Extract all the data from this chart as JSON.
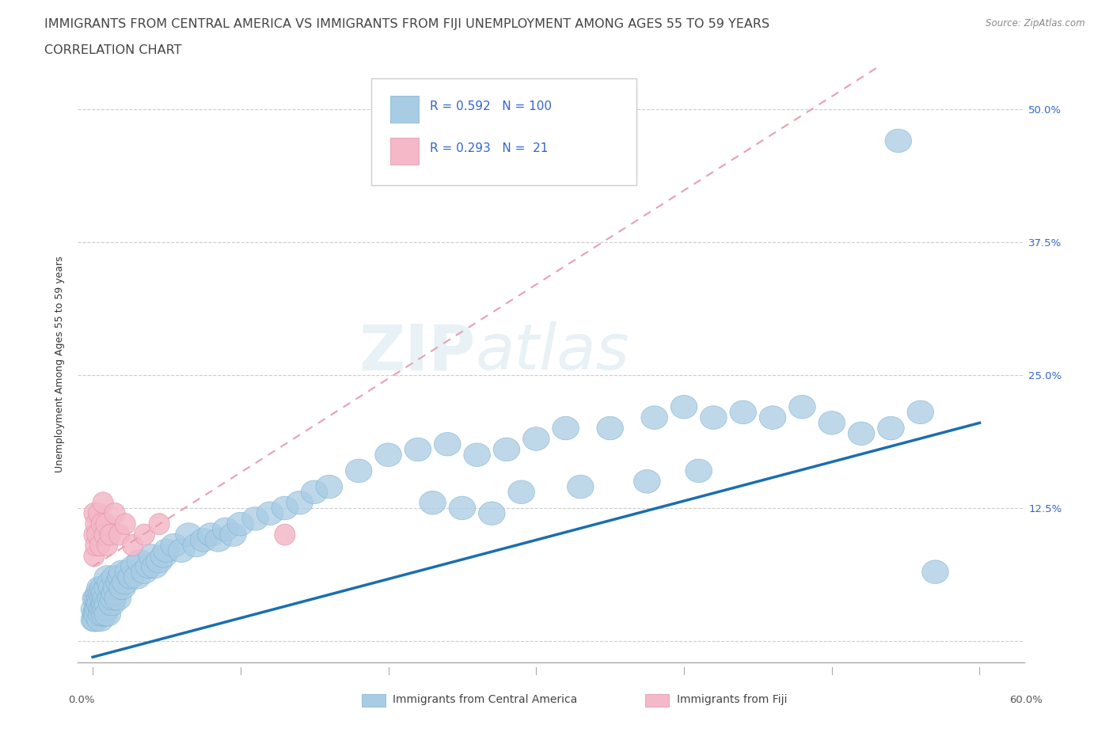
{
  "title": "IMMIGRANTS FROM CENTRAL AMERICA VS IMMIGRANTS FROM FIJI UNEMPLOYMENT AMONG AGES 55 TO 59 YEARS",
  "subtitle": "CORRELATION CHART",
  "source": "Source: ZipAtlas.com",
  "ylabel": "Unemployment Among Ages 55 to 59 years",
  "ytick_vals": [
    0.0,
    0.125,
    0.25,
    0.375,
    0.5
  ],
  "ytick_labels": [
    "",
    "12.5%",
    "25.0%",
    "37.5%",
    "50.0%"
  ],
  "xtick_vals": [
    0.0,
    0.1,
    0.2,
    0.3,
    0.4,
    0.5,
    0.6
  ],
  "xtick_labels": [
    "0.0%",
    "",
    "",
    "",
    "",
    "",
    "60.0%"
  ],
  "R_central": 0.592,
  "N_central": 100,
  "R_fiji": 0.293,
  "N_fiji": 21,
  "color_central": "#a8cce4",
  "color_fiji": "#f4b8c8",
  "trendline_central_color": "#1a6faf",
  "trendline_fiji_color": "#e8a0b0",
  "watermark_zip": "ZIP",
  "watermark_atlas": "atlas",
  "background_color": "#ffffff",
  "legend_central": "Immigrants from Central America",
  "legend_fiji": "Immigrants from Fiji",
  "title_fontsize": 11.5,
  "subtitle_fontsize": 11.5,
  "axis_label_fontsize": 9,
  "tick_fontsize": 9.5,
  "legend_fontsize": 11,
  "central_x": [
    0.001,
    0.001,
    0.002,
    0.002,
    0.002,
    0.003,
    0.003,
    0.003,
    0.004,
    0.004,
    0.004,
    0.005,
    0.005,
    0.005,
    0.005,
    0.006,
    0.006,
    0.006,
    0.007,
    0.007,
    0.007,
    0.008,
    0.008,
    0.008,
    0.009,
    0.009,
    0.01,
    0.01,
    0.01,
    0.01,
    0.012,
    0.012,
    0.013,
    0.013,
    0.014,
    0.015,
    0.015,
    0.016,
    0.017,
    0.018,
    0.019,
    0.02,
    0.02,
    0.022,
    0.024,
    0.026,
    0.028,
    0.03,
    0.032,
    0.035,
    0.038,
    0.04,
    0.042,
    0.045,
    0.048,
    0.05,
    0.055,
    0.06,
    0.065,
    0.07,
    0.075,
    0.08,
    0.085,
    0.09,
    0.095,
    0.1,
    0.11,
    0.12,
    0.13,
    0.14,
    0.15,
    0.16,
    0.18,
    0.2,
    0.22,
    0.24,
    0.26,
    0.28,
    0.3,
    0.32,
    0.35,
    0.38,
    0.4,
    0.42,
    0.44,
    0.46,
    0.48,
    0.5,
    0.52,
    0.54,
    0.56,
    0.375,
    0.41,
    0.33,
    0.29,
    0.27,
    0.25,
    0.23,
    0.57,
    0.545
  ],
  "central_y": [
    0.02,
    0.03,
    0.025,
    0.04,
    0.02,
    0.03,
    0.04,
    0.025,
    0.035,
    0.045,
    0.03,
    0.04,
    0.02,
    0.05,
    0.035,
    0.03,
    0.045,
    0.025,
    0.04,
    0.03,
    0.05,
    0.035,
    0.025,
    0.045,
    0.04,
    0.03,
    0.05,
    0.035,
    0.06,
    0.025,
    0.04,
    0.055,
    0.035,
    0.05,
    0.04,
    0.045,
    0.06,
    0.05,
    0.04,
    0.055,
    0.06,
    0.05,
    0.065,
    0.055,
    0.065,
    0.06,
    0.07,
    0.06,
    0.075,
    0.065,
    0.07,
    0.08,
    0.07,
    0.075,
    0.08,
    0.085,
    0.09,
    0.085,
    0.1,
    0.09,
    0.095,
    0.1,
    0.095,
    0.105,
    0.1,
    0.11,
    0.115,
    0.12,
    0.125,
    0.13,
    0.14,
    0.145,
    0.16,
    0.175,
    0.18,
    0.185,
    0.175,
    0.18,
    0.19,
    0.2,
    0.2,
    0.21,
    0.22,
    0.21,
    0.215,
    0.21,
    0.22,
    0.205,
    0.195,
    0.2,
    0.215,
    0.15,
    0.16,
    0.145,
    0.14,
    0.12,
    0.125,
    0.13,
    0.065,
    0.47
  ],
  "fiji_x": [
    0.001,
    0.001,
    0.001,
    0.002,
    0.002,
    0.003,
    0.004,
    0.005,
    0.006,
    0.007,
    0.008,
    0.009,
    0.01,
    0.012,
    0.015,
    0.018,
    0.022,
    0.027,
    0.035,
    0.045,
    0.13
  ],
  "fiji_y": [
    0.08,
    0.1,
    0.12,
    0.09,
    0.11,
    0.1,
    0.12,
    0.09,
    0.11,
    0.13,
    0.1,
    0.11,
    0.09,
    0.1,
    0.12,
    0.1,
    0.11,
    0.09,
    0.1,
    0.11,
    0.1
  ]
}
